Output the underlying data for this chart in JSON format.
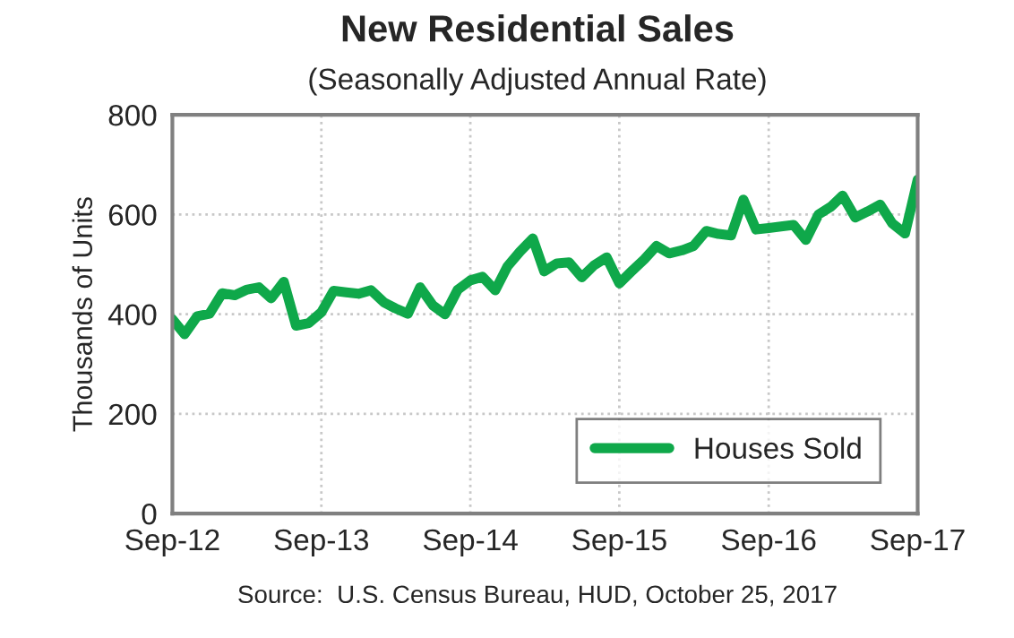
{
  "chart_data": {
    "type": "line",
    "title": "New Residential Sales",
    "subtitle": "(Seasonally Adjusted Annual Rate)",
    "ylabel": "Thousands of Units",
    "annotations": [
      "Source:  U.S. Census Bureau, HUD, October 25, 2017"
    ],
    "x": [
      "2012-09",
      "2012-10",
      "2012-11",
      "2012-12",
      "2013-01",
      "2013-02",
      "2013-03",
      "2013-04",
      "2013-05",
      "2013-06",
      "2013-07",
      "2013-08",
      "2013-09",
      "2013-10",
      "2013-11",
      "2013-12",
      "2014-01",
      "2014-02",
      "2014-03",
      "2014-04",
      "2014-05",
      "2014-06",
      "2014-07",
      "2014-08",
      "2014-09",
      "2014-10",
      "2014-11",
      "2014-12",
      "2015-01",
      "2015-02",
      "2015-03",
      "2015-04",
      "2015-05",
      "2015-06",
      "2015-07",
      "2015-08",
      "2015-09",
      "2015-10",
      "2015-11",
      "2015-12",
      "2016-01",
      "2016-02",
      "2016-03",
      "2016-04",
      "2016-05",
      "2016-06",
      "2016-07",
      "2016-08",
      "2016-09",
      "2016-10",
      "2016-11",
      "2016-12",
      "2017-01",
      "2017-02",
      "2017-03",
      "2017-04",
      "2017-05",
      "2017-06",
      "2017-07",
      "2017-08",
      "2017-09"
    ],
    "series": [
      {
        "name": "Houses Sold",
        "color": "#0fa84a",
        "values": [
          390,
          360,
          396,
          401,
          442,
          438,
          449,
          454,
          432,
          465,
          377,
          382,
          404,
          447,
          444,
          441,
          448,
          424,
          412,
          401,
          454,
          418,
          400,
          449,
          468,
          475,
          448,
          496,
          526,
          552,
          486,
          502,
          504,
          474,
          498,
          514,
          462,
          486,
          510,
          537,
          522,
          528,
          537,
          567,
          561,
          558,
          630,
          570,
          573,
          576,
          579,
          549,
          600,
          616,
          638,
          594,
          606,
          620,
          582,
          562,
          670
        ]
      }
    ],
    "xlim": [
      "2012-09",
      "2017-09"
    ],
    "xticks": [
      {
        "value": "2012-09",
        "label": "Sep-12"
      },
      {
        "value": "2013-09",
        "label": "Sep-13"
      },
      {
        "value": "2014-09",
        "label": "Sep-14"
      },
      {
        "value": "2015-09",
        "label": "Sep-15"
      },
      {
        "value": "2016-09",
        "label": "Sep-16"
      },
      {
        "value": "2017-09",
        "label": "Sep-17"
      }
    ],
    "ylim": [
      0,
      800
    ],
    "yticks": [
      0,
      200,
      400,
      600,
      800
    ],
    "grid": true,
    "legend": "bottom right",
    "marker": "none",
    "line_style": "solid"
  }
}
